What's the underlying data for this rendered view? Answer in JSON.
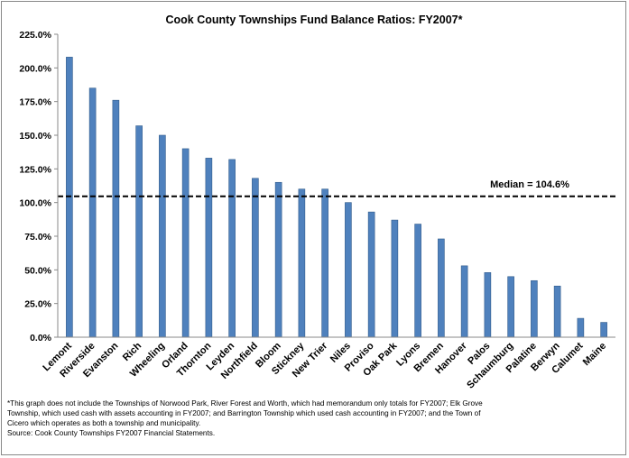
{
  "chart_data": {
    "type": "bar",
    "title": "Cook County Townships Fund Balance Ratios: FY2007*",
    "xlabel": "",
    "ylabel": "",
    "ylim": [
      0,
      225
    ],
    "yticks": [
      "0.0%",
      "25.0%",
      "50.0%",
      "75.0%",
      "100.0%",
      "125.0%",
      "150.0%",
      "175.0%",
      "200.0%",
      "225.0%"
    ],
    "tick_values": [
      0,
      25,
      50,
      75,
      100,
      125,
      150,
      175,
      200,
      225
    ],
    "categories": [
      "Lemont",
      "Riverside",
      "Evanston",
      "Rich",
      "Wheeling",
      "Orland",
      "Thornton",
      "Leyden",
      "Northfield",
      "Bloom",
      "Stickney",
      "New Trier",
      "Niles",
      "Proviso",
      "Oak Park",
      "Lyons",
      "Bremen",
      "Hanover",
      "Palos",
      "Schaumburg",
      "Palatine",
      "Berwyn",
      "Calumet",
      "Maine"
    ],
    "values": [
      208,
      185,
      176,
      157,
      150,
      140,
      133,
      132,
      118,
      115,
      110,
      110,
      100,
      93,
      87,
      84,
      73,
      53,
      48,
      45,
      42,
      38,
      14,
      11
    ],
    "bar_color": "#4F81BD",
    "median": {
      "value": 104.6,
      "label": "Median = 104.6%"
    },
    "grid": false,
    "legend": "none"
  },
  "footnote": {
    "lines": [
      "*This graph does not include the Townships of Norwood Park, River Forest and Worth, which had memorandum only totals for FY2007; Elk Grove",
      "Township, which used cash with assets accounting in FY2007; and Barrington Township which used cash accounting in FY2007; and the Town of",
      "Cicero which operates as both a township and municipality.",
      "Source: Cook County Townships FY2007 Financial Statements."
    ]
  }
}
